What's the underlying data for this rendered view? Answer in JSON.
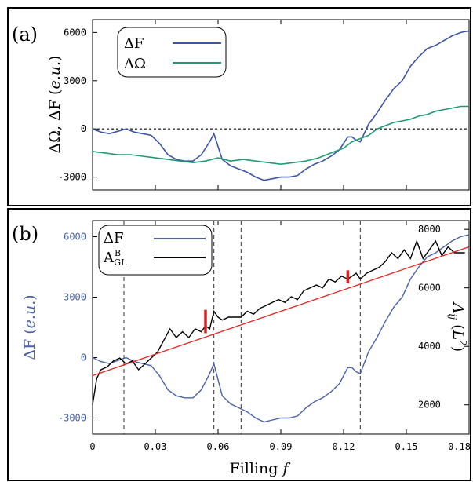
{
  "chart_data": [
    {
      "panel": "(a)",
      "type": "line",
      "xlim": [
        0,
        0.18
      ],
      "ylim": [
        -3800,
        6800
      ],
      "yticks": [
        -3000,
        0,
        3000,
        6000
      ],
      "ytick_labels": [
        "-3000",
        "0",
        "3000",
        "6000"
      ],
      "ylabel": "ΔΩ, ΔF (e.u.)",
      "reference_line": {
        "y": 0,
        "style": "dotted"
      },
      "legend": {
        "placement": "top-left",
        "entries": [
          "ΔF",
          "ΔΩ"
        ]
      },
      "series": [
        {
          "name": "ΔF",
          "color": "#3b56a6",
          "x": [
            0,
            0.004,
            0.008,
            0.012,
            0.016,
            0.02,
            0.024,
            0.028,
            0.032,
            0.036,
            0.04,
            0.044,
            0.048,
            0.052,
            0.056,
            0.058,
            0.062,
            0.066,
            0.07,
            0.074,
            0.078,
            0.082,
            0.086,
            0.09,
            0.094,
            0.098,
            0.102,
            0.106,
            0.11,
            0.114,
            0.118,
            0.122,
            0.124,
            0.126,
            0.128,
            0.132,
            0.136,
            0.14,
            0.144,
            0.148,
            0.152,
            0.156,
            0.16,
            0.164,
            0.168,
            0.172,
            0.176,
            0.18
          ],
          "values": [
            0,
            -200,
            -300,
            -150,
            0,
            -200,
            -300,
            -400,
            -900,
            -1600,
            -1900,
            -2000,
            -2000,
            -1600,
            -800,
            -300,
            -1900,
            -2300,
            -2500,
            -2700,
            -3000,
            -3200,
            -3100,
            -3000,
            -3000,
            -2900,
            -2500,
            -2200,
            -2000,
            -1700,
            -1300,
            -500,
            -500,
            -700,
            -800,
            300,
            1000,
            1800,
            2500,
            3000,
            3900,
            4500,
            5000,
            5200,
            5500,
            5800,
            6000,
            6100
          ]
        },
        {
          "name": "ΔΩ",
          "color": "#1f9a73",
          "x": [
            0,
            0.006,
            0.012,
            0.018,
            0.024,
            0.03,
            0.036,
            0.042,
            0.048,
            0.054,
            0.06,
            0.066,
            0.072,
            0.078,
            0.084,
            0.09,
            0.096,
            0.102,
            0.108,
            0.114,
            0.12,
            0.124,
            0.128,
            0.132,
            0.136,
            0.14,
            0.144,
            0.148,
            0.152,
            0.156,
            0.16,
            0.164,
            0.168,
            0.172,
            0.176,
            0.18
          ],
          "values": [
            -1400,
            -1500,
            -1600,
            -1600,
            -1700,
            -1800,
            -1900,
            -2000,
            -2100,
            -2000,
            -1800,
            -2000,
            -1900,
            -2000,
            -2100,
            -2200,
            -2100,
            -2000,
            -1800,
            -1500,
            -1200,
            -800,
            -600,
            -400,
            0,
            200,
            400,
            500,
            600,
            800,
            900,
            1100,
            1200,
            1300,
            1400,
            1400
          ]
        }
      ]
    },
    {
      "panel": "(b)",
      "type": "line",
      "xlim": [
        0,
        0.18
      ],
      "xticks": [
        0,
        0.03,
        0.06,
        0.09,
        0.12,
        0.15,
        0.18
      ],
      "xtick_labels": [
        "0",
        "0.03",
        "0.06",
        "0.09",
        "0.12",
        "0.15",
        "0.18"
      ],
      "xlabel": "Filling f",
      "ylim_left": [
        -3800,
        6800
      ],
      "yticks_left": [
        -3000,
        0,
        3000,
        6000
      ],
      "ytick_labels_left": [
        "-3000",
        "0",
        "3000",
        "6000"
      ],
      "ylabel_left": "ΔF (e.u.)",
      "ylim_right": [
        1000,
        8300
      ],
      "yticks_right": [
        2000,
        4000,
        6000,
        8000
      ],
      "ytick_labels_right": [
        "2000",
        "4000",
        "6000",
        "8000"
      ],
      "ylabel_right": "A_ij (L²)",
      "vertical_lines_x": [
        0.015,
        0.058,
        0.071,
        0.128
      ],
      "legend": {
        "placement": "top-left",
        "entries": [
          "ΔF",
          "A_GL^B"
        ]
      },
      "series": [
        {
          "name": "ΔF",
          "axis": "left",
          "color": "#4a63a8",
          "x": [
            0,
            0.004,
            0.008,
            0.012,
            0.016,
            0.02,
            0.024,
            0.028,
            0.032,
            0.036,
            0.04,
            0.044,
            0.048,
            0.052,
            0.056,
            0.058,
            0.062,
            0.066,
            0.07,
            0.074,
            0.078,
            0.082,
            0.086,
            0.09,
            0.094,
            0.098,
            0.102,
            0.106,
            0.11,
            0.114,
            0.118,
            0.122,
            0.124,
            0.126,
            0.128,
            0.132,
            0.136,
            0.14,
            0.144,
            0.148,
            0.152,
            0.156,
            0.16,
            0.164,
            0.168,
            0.172,
            0.176,
            0.18
          ],
          "values": [
            0,
            -200,
            -300,
            -150,
            0,
            -200,
            -300,
            -400,
            -900,
            -1600,
            -1900,
            -2000,
            -2000,
            -1600,
            -800,
            -300,
            -1900,
            -2300,
            -2500,
            -2700,
            -3000,
            -3200,
            -3100,
            -3000,
            -3000,
            -2900,
            -2500,
            -2200,
            -2000,
            -1700,
            -1300,
            -500,
            -500,
            -700,
            -800,
            300,
            1000,
            1800,
            2500,
            3000,
            3900,
            4500,
            5000,
            5200,
            5500,
            5800,
            6000,
            6100
          ]
        },
        {
          "name": "A_GL^B",
          "axis": "right",
          "color": "#000000",
          "x": [
            0,
            0.002,
            0.004,
            0.007,
            0.01,
            0.013,
            0.016,
            0.019,
            0.022,
            0.025,
            0.028,
            0.031,
            0.034,
            0.037,
            0.04,
            0.043,
            0.046,
            0.049,
            0.052,
            0.054,
            0.056,
            0.058,
            0.06,
            0.062,
            0.065,
            0.068,
            0.071,
            0.074,
            0.077,
            0.08,
            0.083,
            0.086,
            0.089,
            0.092,
            0.095,
            0.098,
            0.101,
            0.104,
            0.107,
            0.11,
            0.113,
            0.116,
            0.119,
            0.122,
            0.124,
            0.126,
            0.128,
            0.131,
            0.134,
            0.137,
            0.14,
            0.143,
            0.146,
            0.149,
            0.152,
            0.155,
            0.158,
            0.161,
            0.164,
            0.167,
            0.17,
            0.173,
            0.176,
            0.178
          ],
          "values": [
            2000,
            2900,
            3200,
            3300,
            3500,
            3600,
            3400,
            3500,
            3200,
            3400,
            3600,
            3800,
            4200,
            4600,
            4300,
            4500,
            4300,
            4600,
            4500,
            4700,
            4600,
            5200,
            5000,
            4900,
            5000,
            5000,
            5000,
            5200,
            5100,
            5300,
            5400,
            5500,
            5600,
            5500,
            5700,
            5600,
            5900,
            6000,
            6100,
            6000,
            6300,
            6200,
            6400,
            6300,
            6400,
            6500,
            6300,
            6500,
            6600,
            6700,
            6900,
            7200,
            7000,
            7300,
            7000,
            7600,
            7000,
            7300,
            7600,
            7100,
            7400,
            7200,
            7200,
            7200
          ]
        },
        {
          "name": "linear fit",
          "axis": "right",
          "color": "#e8231f",
          "x": [
            0,
            0.18
          ],
          "values": [
            3000,
            7400
          ]
        }
      ],
      "highlight_marks": [
        {
          "x": 0.054,
          "y_from": 4450,
          "y_to": 5250,
          "color": "#d62020"
        },
        {
          "x": 0.122,
          "y_from": 6150,
          "y_to": 6600,
          "color": "#d62020"
        }
      ]
    }
  ],
  "panel_labels": [
    "(a)",
    "(b)"
  ],
  "legend_a": [
    "ΔF",
    "ΔΩ"
  ],
  "legend_b": [
    "ΔF",
    "A",
    "B",
    "GL"
  ],
  "axis_labels": {
    "a_y": [
      "ΔΩ, ΔF (",
      "e.u.",
      ")"
    ],
    "b_y_left": [
      "ΔF (",
      "e.u.",
      ")"
    ],
    "b_y_right": [
      "A",
      "ij",
      " (",
      "L",
      "2",
      ")"
    ],
    "b_x": [
      "Filling ",
      "f"
    ]
  }
}
